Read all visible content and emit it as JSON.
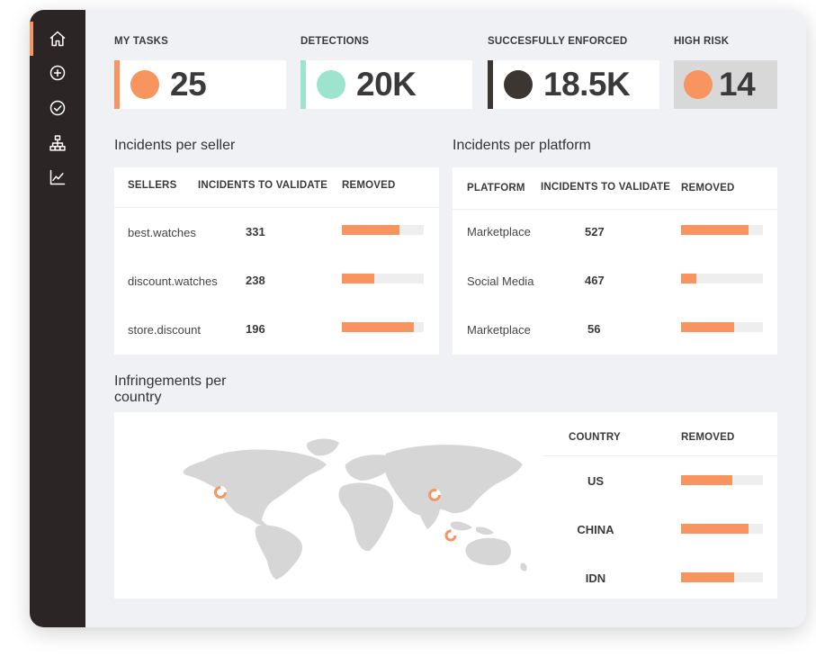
{
  "kpis": [
    {
      "label": "MY TASKS",
      "value": "25",
      "dot_color": "#f7945f",
      "accent": "#f7945f"
    },
    {
      "label": "DETECTIONS",
      "value": "20K",
      "dot_color": "#9ee3cd",
      "accent": "#9ee3cd"
    },
    {
      "label": "SUCCESFULLY ENFORCED",
      "value": "18.5K",
      "dot_color": "#3c3633",
      "accent": "#3c3633"
    },
    {
      "label": "HIGH RISK",
      "value": "14",
      "dot_color": "#f7945f",
      "accent": "#d8d8d8"
    }
  ],
  "sidebar": {
    "items": [
      {
        "icon": "home-icon"
      },
      {
        "icon": "plus-circle-icon"
      },
      {
        "icon": "check-circle-icon"
      },
      {
        "icon": "hierarchy-icon"
      },
      {
        "icon": "line-chart-icon"
      }
    ]
  },
  "sellers": {
    "title": "Incidents per seller",
    "headers": [
      "SELLERS",
      "INCIDENTS TO VALIDATE",
      "REMOVED"
    ],
    "rows": [
      {
        "name": "best.watches",
        "count": "331",
        "removed": 0.7
      },
      {
        "name": "discount.watches",
        "count": "238",
        "removed": 0.4
      },
      {
        "name": "store.discount",
        "count": "196",
        "removed": 0.88
      }
    ]
  },
  "platforms": {
    "title": "Incidents per platform",
    "headers": [
      "PLATFORM",
      "INCIDENTS TO VALIDATE",
      "REMOVED"
    ],
    "rows": [
      {
        "name": "Marketplace",
        "count": "527",
        "removed": 0.82
      },
      {
        "name": "Social Media",
        "count": "467",
        "removed": 0.19
      },
      {
        "name": "Marketplace",
        "count": "56",
        "removed": 0.65
      }
    ]
  },
  "countries": {
    "title_line1": "Infringements per",
    "title_line2": "country",
    "headers": [
      "COUNTRY",
      "REMOVED"
    ],
    "rows": [
      {
        "name": "US",
        "removed": 0.63
      },
      {
        "name": "CHINA",
        "removed": 0.82
      },
      {
        "name": "IDN",
        "removed": 0.65
      }
    ]
  },
  "colors": {
    "accent": "#f7945f",
    "sidebar": "#2b2625",
    "map": "#d6d6d6"
  }
}
